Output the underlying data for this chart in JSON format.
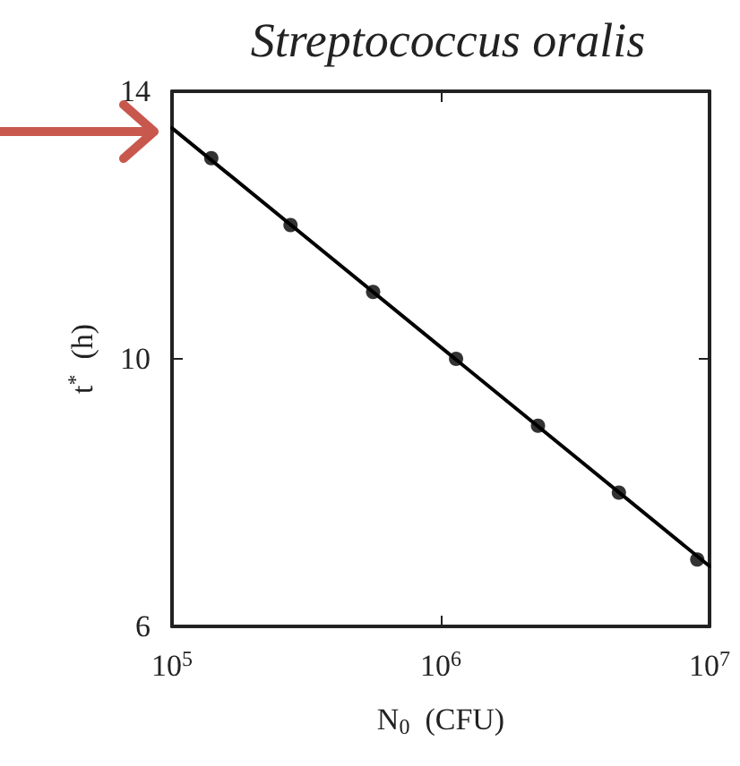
{
  "chart_data": {
    "type": "scatter",
    "title": "Streptococcus oralis",
    "xlabel": "N$_{0}$  (CFU)",
    "ylabel": "t$^{*}$  (h)",
    "log": "x",
    "xlim": [
      100000,
      10000000
    ],
    "xticks": [
      {
        "value": 100000,
        "label": "10$^{5}$"
      },
      {
        "value": 1000000,
        "label": "10$^{6}$"
      },
      {
        "value": 10000000,
        "label": "10$^{7}$"
      }
    ],
    "ylim": [
      6,
      14
    ],
    "yticks": [
      6,
      10,
      14
    ],
    "grid": false,
    "series": [
      {
        "color": "#000000",
        "marker": "circle",
        "x": [
          140000,
          276000,
          560000,
          1140000,
          2300000,
          4600000,
          9000000
        ],
        "values": [
          13.0,
          12.0,
          11.0,
          10.0,
          9.0,
          8.0,
          7.0
        ]
      },
      {
        "type": "line",
        "color": "#000000",
        "marker": "none",
        "line_style": "solid",
        "x": [
          100000,
          10000000
        ],
        "values": [
          13.45,
          6.9
        ]
      }
    ]
  }
}
